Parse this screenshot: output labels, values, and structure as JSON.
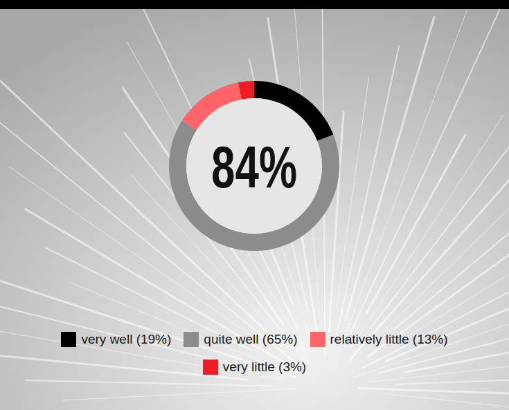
{
  "chart_data": {
    "type": "donut",
    "categories": [
      "very well (19%)",
      "quite well (65%)",
      "relatively little (13%)",
      "very little (3%)"
    ],
    "values": [
      19,
      65,
      13,
      3
    ],
    "colors": [
      "#000000",
      "#8c8c8c",
      "#ff6468",
      "#ee1c25"
    ],
    "center_label": "84%",
    "legend": "bottom"
  }
}
